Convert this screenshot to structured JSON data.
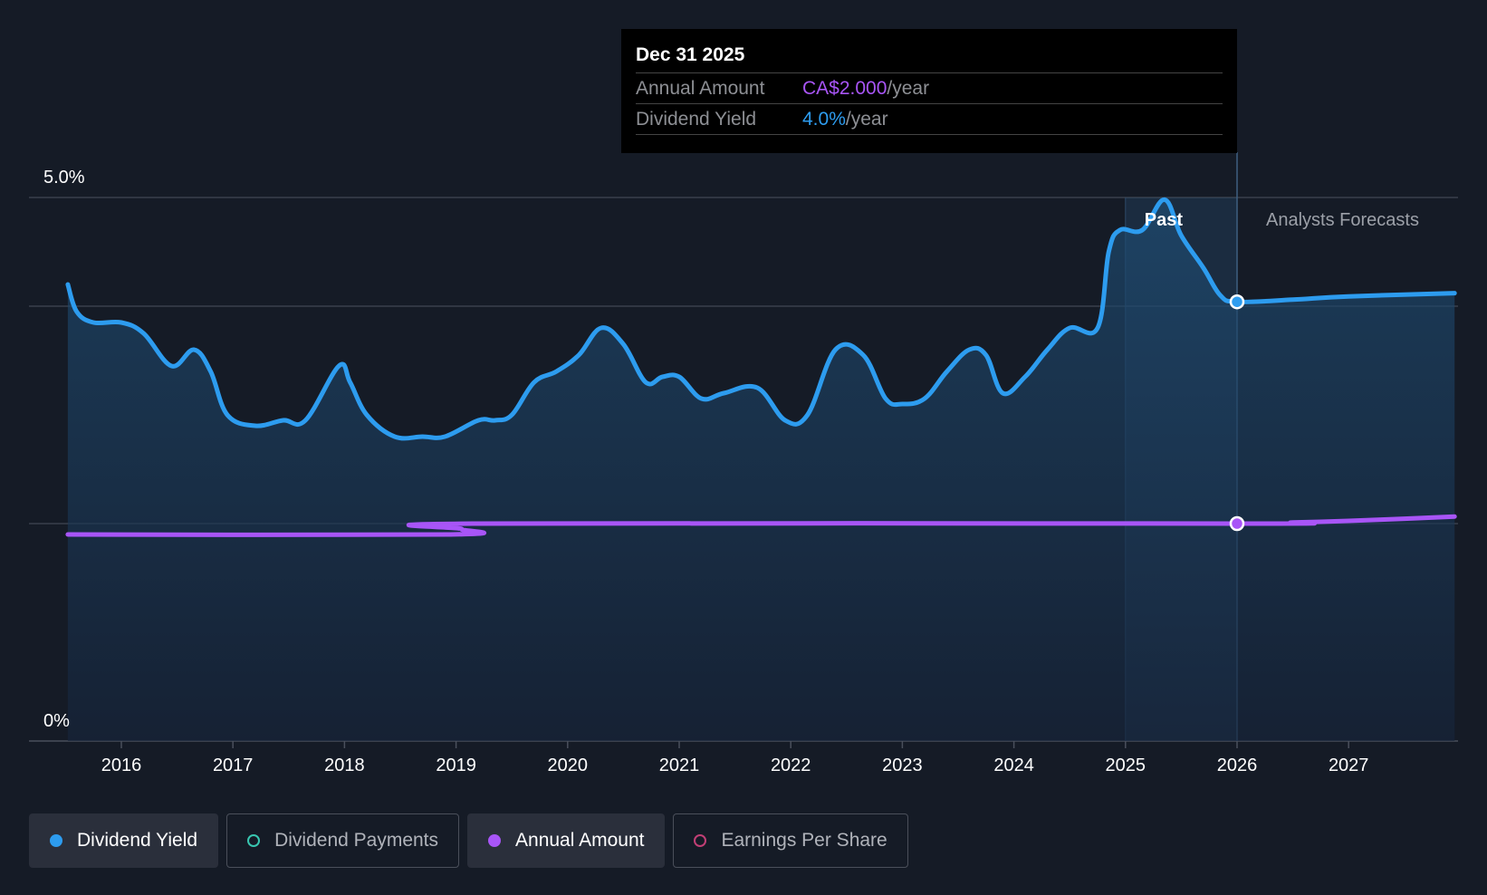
{
  "colors": {
    "background": "#151b26",
    "yield": "#2d9cef",
    "annual": "#a855f7",
    "payments": "#38c6b0",
    "eps": "#c13f75",
    "grid": "#3a404c"
  },
  "tooltip": {
    "date": "Dec 31 2025",
    "annual_label": "Annual Amount",
    "annual_value": "CA$2.000",
    "annual_unit": "/year",
    "yield_label": "Dividend Yield",
    "yield_value": "4.0%",
    "yield_unit": "/year"
  },
  "regions": {
    "past": "Past",
    "forecast": "Analysts Forecasts"
  },
  "legend": [
    {
      "label": "Dividend Yield",
      "style": "filled",
      "dot": "#2d9cef",
      "dot_style": "solid"
    },
    {
      "label": "Dividend Payments",
      "style": "outlined",
      "dot": "#38c6b0",
      "dot_style": "ring"
    },
    {
      "label": "Annual Amount",
      "style": "filled",
      "dot": "#a855f7",
      "dot_style": "solid"
    },
    {
      "label": "Earnings Per Share",
      "style": "outlined",
      "dot": "#c13f75",
      "dot_style": "ring"
    }
  ],
  "chart_data": {
    "type": "line",
    "title": "",
    "xlabel": "",
    "ylabel": "",
    "xlim": [
      2015.0,
      2027.95
    ],
    "ylim": [
      0,
      5.0
    ],
    "y_ticks": [
      {
        "value": 5.0,
        "label": "5.0%"
      },
      {
        "value": 0,
        "label": "0%"
      }
    ],
    "y_gridlines": [
      5.0,
      4.0,
      2.0,
      0
    ],
    "x_ticks": [
      2016,
      2017,
      2018,
      2019,
      2020,
      2021,
      2022,
      2023,
      2024,
      2025,
      2026,
      2027
    ],
    "past_band": [
      2025.0,
      2026.0
    ],
    "forecast_start": 2026.0,
    "tooltip_x": 2026.0,
    "series": [
      {
        "name": "Dividend Yield",
        "unit": "%",
        "x": [
          2015.52,
          2015.6,
          2015.75,
          2016.0,
          2016.2,
          2016.45,
          2016.65,
          2016.8,
          2016.95,
          2017.2,
          2017.45,
          2017.65,
          2017.95,
          2018.05,
          2018.2,
          2018.45,
          2018.7,
          2018.9,
          2019.2,
          2019.35,
          2019.5,
          2019.7,
          2019.9,
          2020.1,
          2020.3,
          2020.5,
          2020.7,
          2020.85,
          2021.0,
          2021.2,
          2021.4,
          2021.7,
          2021.95,
          2022.15,
          2022.4,
          2022.65,
          2022.85,
          2023.0,
          2023.2,
          2023.4,
          2023.6,
          2023.75,
          2023.9,
          2024.1,
          2024.3,
          2024.5,
          2024.75,
          2024.85,
          2024.95,
          2025.15,
          2025.35,
          2025.5,
          2025.7,
          2025.85,
          2026.0,
          2026.5,
          2027.0,
          2027.95
        ],
        "values": [
          4.2,
          3.95,
          3.85,
          3.85,
          3.75,
          3.45,
          3.6,
          3.4,
          3.0,
          2.9,
          2.95,
          2.95,
          3.45,
          3.3,
          3.0,
          2.8,
          2.8,
          2.8,
          2.95,
          2.95,
          3.0,
          3.3,
          3.4,
          3.55,
          3.8,
          3.65,
          3.3,
          3.35,
          3.35,
          3.15,
          3.2,
          3.25,
          2.95,
          3.0,
          3.6,
          3.55,
          3.15,
          3.1,
          3.15,
          3.4,
          3.6,
          3.55,
          3.2,
          3.35,
          3.6,
          3.8,
          3.8,
          4.5,
          4.7,
          4.7,
          4.98,
          4.65,
          4.35,
          4.1,
          4.04,
          4.06,
          4.09,
          4.12
        ]
      },
      {
        "name": "Annual Amount",
        "unit": "CA$/year",
        "x": [
          2015.52,
          2018.95,
          2019.05,
          2019.15,
          2026.0,
          2026.5,
          2027.0,
          2027.5,
          2027.95
        ],
        "values": [
          1.9,
          1.9,
          1.95,
          2.0,
          2.0,
          2.01,
          2.025,
          2.045,
          2.065
        ]
      }
    ]
  }
}
